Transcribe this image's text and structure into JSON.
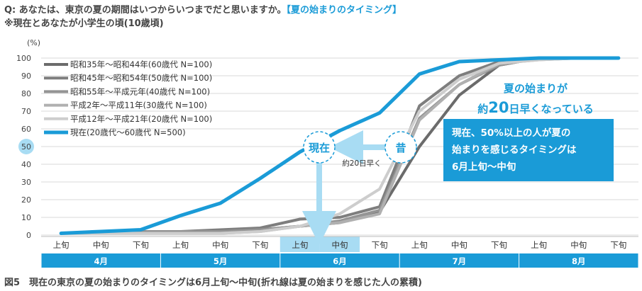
{
  "header": {
    "question_prefix": "Q: あなたは、東京の夏の期間はいつからいつまでだと思いますか。",
    "question_highlight": "【夏の始まりのタイミング】",
    "subtitle": "※現在とあなたが小学生の頃(10歳頃)"
  },
  "caption": "図5　現在の東京の夏の始まりのタイミングは6月上旬～中旬(折れ線は夏の始まりを感じた人の累積)",
  "colors": {
    "current": "#1a9bd7",
    "accent_box": "#1a9bd7",
    "highlight_column": "#a8dcf3",
    "month_band": "#1a9bd7"
  },
  "annotations": {
    "summary_line1": "夏の始まりが",
    "summary_line2_prefix": "約",
    "summary_line2_num": "20",
    "summary_line2_suffix": "日早くなっている",
    "box_line1": "現在、50%以上の人が夏の",
    "box_line2": "始まりを感じるタイミングは",
    "box_line3": "6月上旬～中旬",
    "now_label": "現在",
    "past_label": "昔",
    "shift_label": "約20日早く"
  },
  "chart_data": {
    "type": "line",
    "ylabel": "(%)",
    "ylim": [
      0,
      100
    ],
    "yticks": [
      0,
      10,
      20,
      30,
      40,
      50,
      60,
      70,
      80,
      90,
      100
    ],
    "highlight_ytick": 50,
    "categories": [
      "上旬",
      "中旬",
      "下旬",
      "上旬",
      "中旬",
      "下旬",
      "上旬",
      "中旬",
      "下旬",
      "上旬",
      "中旬",
      "下旬",
      "上旬",
      "中旬",
      "下旬"
    ],
    "highlight_categories": [
      6,
      7
    ],
    "months": [
      {
        "label": "4月",
        "start": 0,
        "end": 2
      },
      {
        "label": "5月",
        "start": 3,
        "end": 5
      },
      {
        "label": "6月",
        "start": 6,
        "end": 8
      },
      {
        "label": "7月",
        "start": 9,
        "end": 11
      },
      {
        "label": "8月",
        "start": 12,
        "end": 14
      }
    ],
    "series": [
      {
        "name": "昭和35年～昭和44年(60歳代 N=100)",
        "color": "#6b6b6b",
        "width": 4,
        "values": [
          1,
          1,
          2,
          2,
          2,
          3,
          5,
          7,
          13,
          50,
          79,
          96,
          100,
          100,
          100
        ]
      },
      {
        "name": "昭和45年～昭和54年(50歳代 N=100)",
        "color": "#7e7e7e",
        "width": 4,
        "values": [
          1,
          1,
          2,
          2,
          3,
          4,
          9,
          10,
          16,
          73,
          90,
          98,
          100,
          100,
          100
        ]
      },
      {
        "name": "昭和55年～平成元年(40歳代 N=100)",
        "color": "#949494",
        "width": 4,
        "values": [
          1,
          1,
          2,
          2,
          2,
          3,
          5,
          8,
          14,
          66,
          85,
          96,
          100,
          100,
          100
        ]
      },
      {
        "name": "平成2年～平成11年(30歳代 N=100)",
        "color": "#b0b0b0",
        "width": 4,
        "values": [
          1,
          1,
          1,
          1,
          1,
          2,
          5,
          7,
          12,
          65,
          85,
          97,
          99,
          100,
          100
        ]
      },
      {
        "name": "平成12年～平成21年(20歳代 N=100)",
        "color": "#cdcdcd",
        "width": 4,
        "values": [
          1,
          1,
          1,
          1,
          1,
          2,
          5,
          12,
          26,
          70,
          88,
          97,
          99,
          100,
          100
        ]
      },
      {
        "name": "現在(20歳代～60歳代 N=500)",
        "color": "#1a9bd7",
        "width": 5,
        "values": [
          1,
          2,
          3,
          11,
          18,
          32,
          47,
          59,
          69,
          91,
          98,
          99,
          100,
          100,
          100
        ]
      }
    ]
  }
}
